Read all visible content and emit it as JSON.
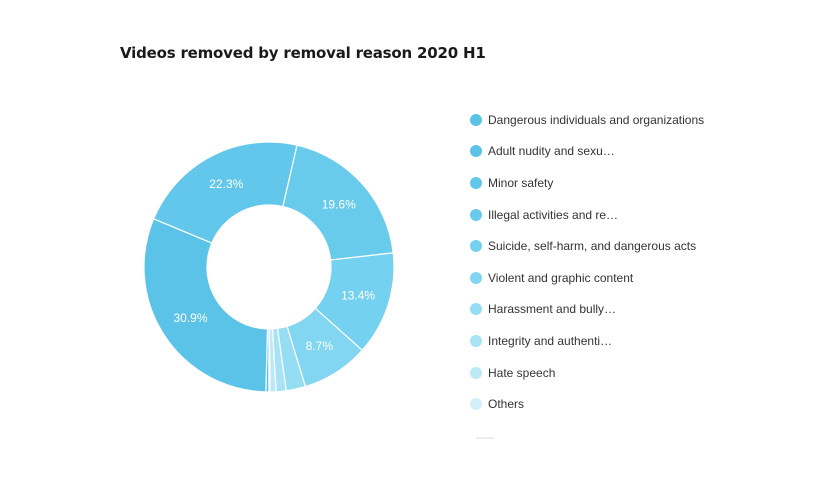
{
  "chart_data": {
    "type": "pie",
    "title": "Videos removed by removal reason 2020 H1",
    "donut": true,
    "legend_position": "right",
    "categories": [
      "Dangerous individuals and organizations",
      "Adult nudity and sexu…",
      "Minor safety",
      "Illegal activities and re…",
      "Suicide, self-harm, and dangerous acts",
      "Violent and graphic content",
      "Harassment and bully…",
      "Integrity and authenti…",
      "Hate speech",
      "Others"
    ],
    "values": [
      0.4,
      30.9,
      22.3,
      19.6,
      13.4,
      8.7,
      2.5,
      1.3,
      0.8,
      0.1
    ],
    "data_labels": [
      "",
      "30.9%",
      "22.3%",
      "19.6%",
      "13.4%",
      "8.7%",
      "",
      "",
      "",
      ""
    ],
    "colors": [
      "#5cc3e8",
      "#5cc3e8",
      "#62c7eb",
      "#68cbec",
      "#74d1ef",
      "#82d6f1",
      "#95ddf3",
      "#a7e3f5",
      "#bde9f7",
      "#d3f0fa"
    ]
  }
}
